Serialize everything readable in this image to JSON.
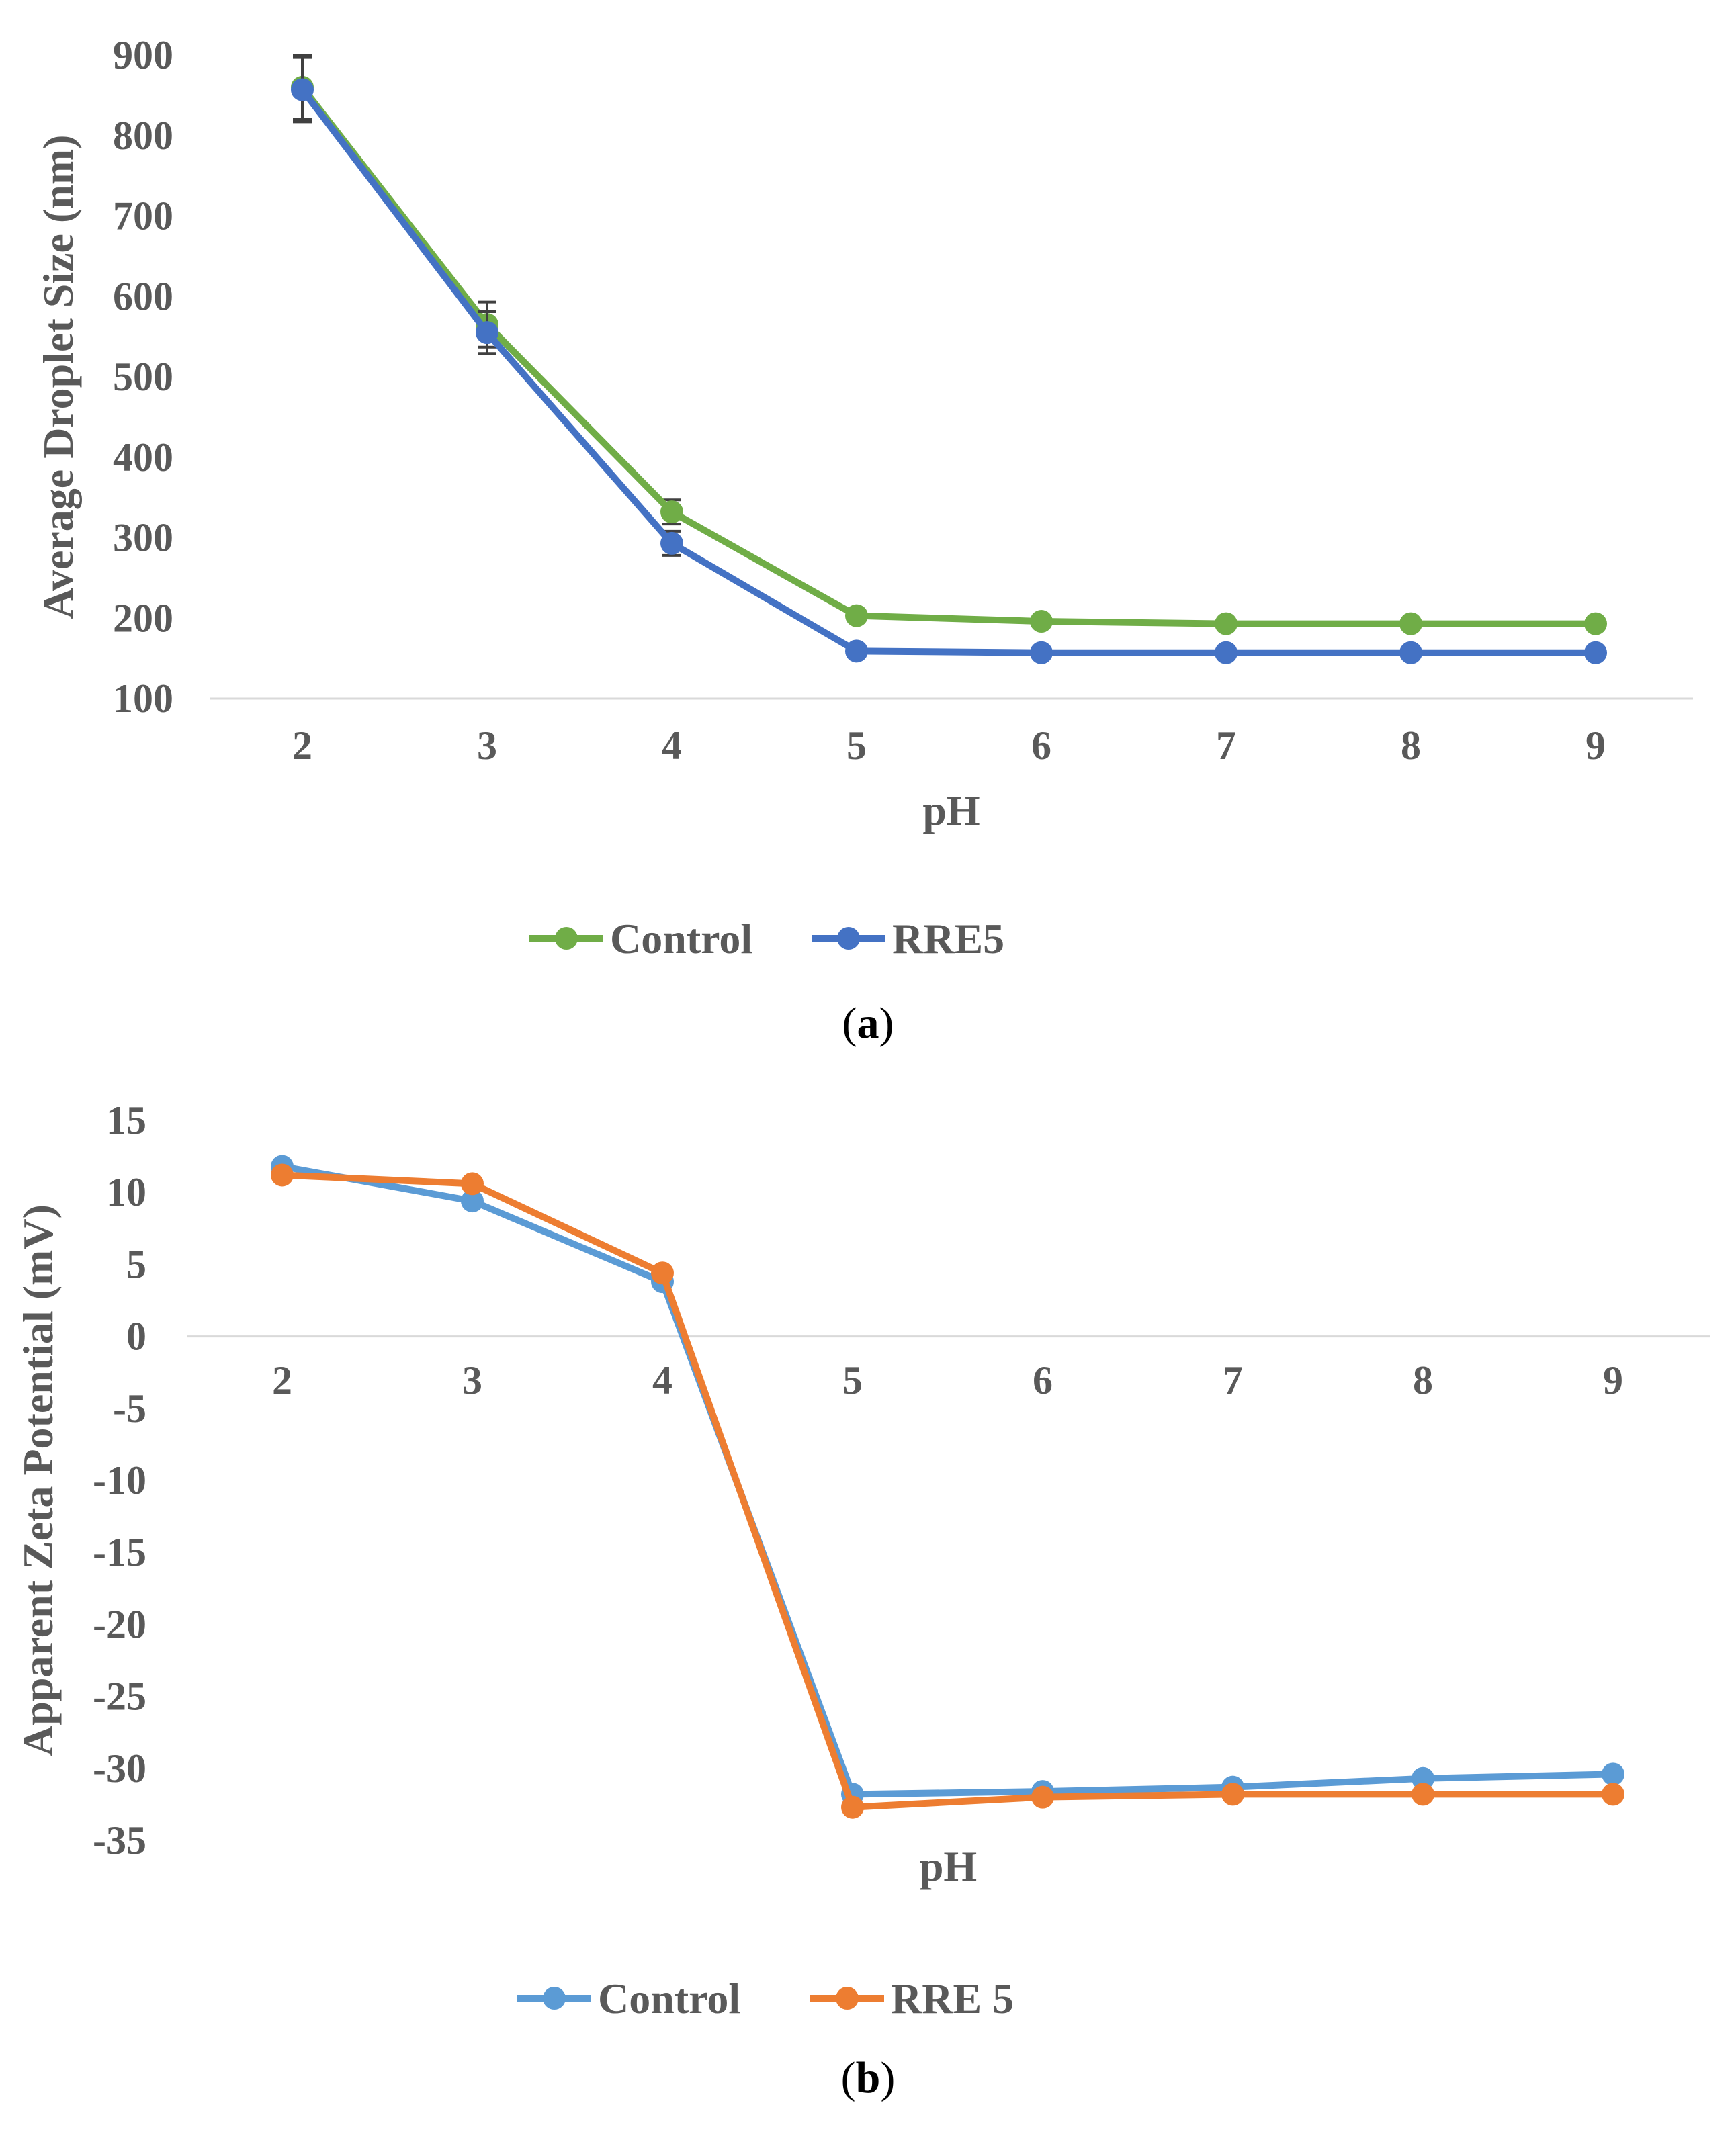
{
  "chart_data": [
    {
      "type": "line",
      "panel_label": "a",
      "xlabel": "pH",
      "ylabel": "Average Droplet Size (nm)",
      "categories": [
        "2",
        "3",
        "4",
        "5",
        "6",
        "7",
        "8",
        "9"
      ],
      "ylim": [
        100,
        900
      ],
      "yticks": [
        "100",
        "200",
        "300",
        "400",
        "500",
        "600",
        "700",
        "800",
        "900"
      ],
      "legend_position": "bottom-center",
      "series": [
        {
          "name": "Control",
          "color": "#70ad47",
          "values": [
            860,
            565,
            332,
            203,
            196,
            193,
            193,
            193
          ],
          "errors": [
            40,
            28,
            15,
            6,
            6,
            6,
            6,
            6
          ]
        },
        {
          "name": "RRE5",
          "color": "#4472c4",
          "values": [
            857,
            555,
            293,
            159,
            157,
            157,
            157,
            157
          ],
          "errors": [
            40,
            26,
            15,
            5,
            5,
            5,
            5,
            5
          ]
        }
      ]
    },
    {
      "type": "line",
      "panel_label": "b",
      "xlabel": "pH",
      "ylabel": "Apparent Zeta Potential (mV)",
      "categories": [
        "2",
        "3",
        "4",
        "5",
        "6",
        "7",
        "8",
        "9"
      ],
      "ylim": [
        -35,
        15
      ],
      "yticks": [
        "-35",
        "-30",
        "-25",
        "-20",
        "-15",
        "-10",
        "-5",
        "0",
        "5",
        "10",
        "15"
      ],
      "legend_position": "bottom-center",
      "series": [
        {
          "name": "Control",
          "color": "#5b9bd5",
          "values": [
            11.8,
            9.4,
            3.8,
            -31.8,
            -31.6,
            -31.3,
            -30.7,
            -30.4
          ]
        },
        {
          "name": "RRE 5",
          "color": "#ed7d31",
          "values": [
            11.2,
            10.6,
            4.4,
            -32.7,
            -32.0,
            -31.8,
            -31.8,
            -31.8
          ]
        }
      ]
    }
  ]
}
